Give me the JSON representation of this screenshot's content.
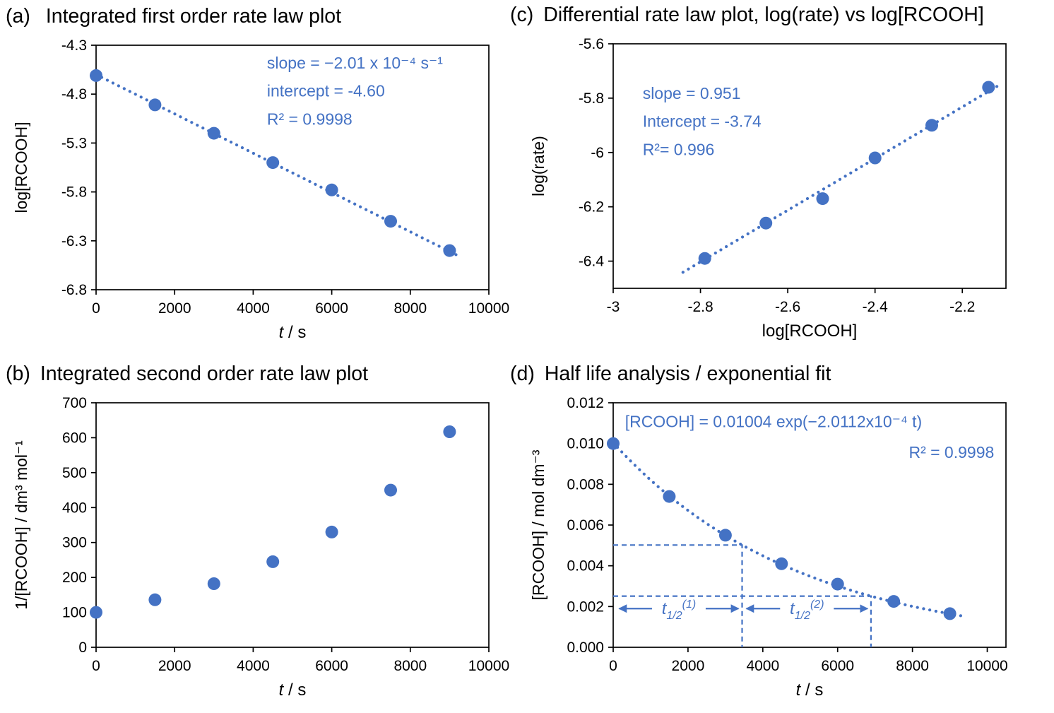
{
  "colors": {
    "accent": "#4472C4",
    "axis": "#000000",
    "text": "#000000"
  },
  "chart_data": [
    {
      "key": "a",
      "panel_label": "(a)",
      "title": "Integrated first order rate law plot",
      "type": "scatter",
      "xlabel_parts": [
        {
          "text": "t",
          "italic": true
        },
        {
          "text": " / s",
          "italic": false
        }
      ],
      "ylabel": "log[RCOOH]",
      "xlim": [
        0,
        10000
      ],
      "ylim": [
        -6.8,
        -4.3
      ],
      "xticks": [
        0,
        2000,
        4000,
        6000,
        8000,
        10000
      ],
      "xtick_labels": [
        "0",
        "2000",
        "4000",
        "6000",
        "8000",
        "10000"
      ],
      "yticks": [
        -4.3,
        -4.8,
        -5.3,
        -5.8,
        -6.3,
        -6.8
      ],
      "ytick_labels": [
        "-4.3",
        "-4.8",
        "-5.3",
        "-5.8",
        "-6.3",
        "-6.8"
      ],
      "x": [
        0,
        1500,
        3000,
        4500,
        6000,
        7500,
        9000
      ],
      "y": [
        -4.61,
        -4.91,
        -5.2,
        -5.5,
        -5.78,
        -6.1,
        -6.4
      ],
      "trendline": {
        "kind": "linear",
        "slope": -0.000201,
        "intercept": -4.6,
        "x_from": 0,
        "x_to": 9300,
        "style": "dotted"
      },
      "annotations": [
        {
          "text": "slope = −2.01 x 10⁻⁴ s⁻¹",
          "x": 0.435,
          "y": 0.095,
          "anchor": "start"
        },
        {
          "text": "intercept = -4.60",
          "x": 0.435,
          "y": 0.21,
          "anchor": "start"
        },
        {
          "text": "R² = 0.9998",
          "x": 0.435,
          "y": 0.325,
          "anchor": "start"
        }
      ]
    },
    {
      "key": "c",
      "panel_label": "(c)",
      "title": "Differential rate law plot, log(rate) vs log[RCOOH]",
      "type": "scatter",
      "xlabel_parts": [
        {
          "text": "log[RCOOH]",
          "italic": false
        }
      ],
      "ylabel": "log(rate)",
      "xlim": [
        -3,
        -2.1
      ],
      "ylim": [
        -6.5,
        -5.6
      ],
      "xticks": [
        -3,
        -2.8,
        -2.6,
        -2.4,
        -2.2
      ],
      "xtick_labels": [
        "-3",
        "-2.8",
        "-2.6",
        "-2.4",
        "-2.2"
      ],
      "yticks": [
        -5.6,
        -5.8,
        -6,
        -6.2,
        -6.4
      ],
      "ytick_labels": [
        "-5.6",
        "-5.8",
        "-6",
        "-6.2",
        "-6.4"
      ],
      "x": [
        -2.79,
        -2.65,
        -2.52,
        -2.4,
        -2.27,
        -2.14
      ],
      "y": [
        -6.39,
        -6.26,
        -6.17,
        -6.02,
        -5.9,
        -5.76
      ],
      "trendline": {
        "kind": "linear",
        "slope": 0.951,
        "intercept": -3.74,
        "x_from": -2.84,
        "x_to": -2.11,
        "style": "dotted"
      },
      "annotations": [
        {
          "text": "slope = 0.951",
          "x": 0.075,
          "y": 0.225,
          "anchor": "start"
        },
        {
          "text": "Intercept = -3.74",
          "x": 0.075,
          "y": 0.34,
          "anchor": "start"
        },
        {
          "text": "R²= 0.996",
          "x": 0.075,
          "y": 0.455,
          "anchor": "start"
        }
      ]
    },
    {
      "key": "b",
      "panel_label": "(b)",
      "title": "Integrated second order rate law plot",
      "type": "scatter",
      "xlabel_parts": [
        {
          "text": "t",
          "italic": true
        },
        {
          "text": " / s",
          "italic": false
        }
      ],
      "ylabel": "1/[RCOOH] / dm³ mol⁻¹",
      "xlim": [
        0,
        10000
      ],
      "ylim": [
        0,
        700
      ],
      "xticks": [
        0,
        2000,
        4000,
        6000,
        8000,
        10000
      ],
      "xtick_labels": [
        "0",
        "2000",
        "4000",
        "6000",
        "8000",
        "10000"
      ],
      "yticks": [
        0,
        100,
        200,
        300,
        400,
        500,
        600,
        700
      ],
      "ytick_labels": [
        "0",
        "100",
        "200",
        "300",
        "400",
        "500",
        "600",
        "700"
      ],
      "x": [
        0,
        1500,
        3000,
        4500,
        6000,
        7500,
        9000
      ],
      "y": [
        100,
        136,
        182,
        245,
        330,
        450,
        617
      ],
      "trendline": null,
      "annotations": []
    },
    {
      "key": "d",
      "panel_label": "(d)",
      "title": "Half life analysis / exponential fit",
      "type": "scatter",
      "xlabel_parts": [
        {
          "text": "t",
          "italic": true
        },
        {
          "text": " / s",
          "italic": false
        }
      ],
      "ylabel": "[RCOOH] / mol dm⁻³",
      "xlim": [
        0,
        10500
      ],
      "ylim": [
        0,
        0.012
      ],
      "xticks": [
        0,
        2000,
        4000,
        6000,
        8000,
        10000
      ],
      "xtick_labels": [
        "0",
        "2000",
        "4000",
        "6000",
        "8000",
        "10000"
      ],
      "yticks": [
        0,
        0.002,
        0.004,
        0.006,
        0.008,
        0.01,
        0.012
      ],
      "ytick_labels": [
        "0.000",
        "0.002",
        "0.004",
        "0.006",
        "0.008",
        "0.010",
        "0.012"
      ],
      "x": [
        0,
        1500,
        3000,
        4500,
        6000,
        7500,
        9000
      ],
      "y": [
        0.01,
        0.0074,
        0.0055,
        0.0041,
        0.0031,
        0.00225,
        0.00165
      ],
      "trendline": {
        "kind": "exp",
        "a": 0.01004,
        "k": -0.00020112,
        "x_from": 0,
        "x_to": 9400,
        "style": "dotted"
      },
      "annotations": [
        {
          "text": "[RCOOH] = 0.01004 exp(−2.0112x10⁻⁴ t)",
          "x": 0.03,
          "y": 0.1,
          "anchor": "start"
        },
        {
          "text": "R² = 0.9998",
          "x": 0.97,
          "y": 0.225,
          "anchor": "end"
        }
      ],
      "halflife": {
        "guides": [
          {
            "y": 0.00502,
            "x": 3446
          },
          {
            "y": 0.00251,
            "x": 6892
          }
        ],
        "arrows": [
          {
            "x1": 160,
            "x2": 3350,
            "y": 0.0019,
            "label": {
              "base": "t",
              "sub": "1/2",
              "sup": "(1)"
            }
          },
          {
            "x1": 3560,
            "x2": 6800,
            "y": 0.0019,
            "label": {
              "base": "t",
              "sub": "1/2",
              "sup": "(2)"
            }
          }
        ]
      }
    }
  ]
}
